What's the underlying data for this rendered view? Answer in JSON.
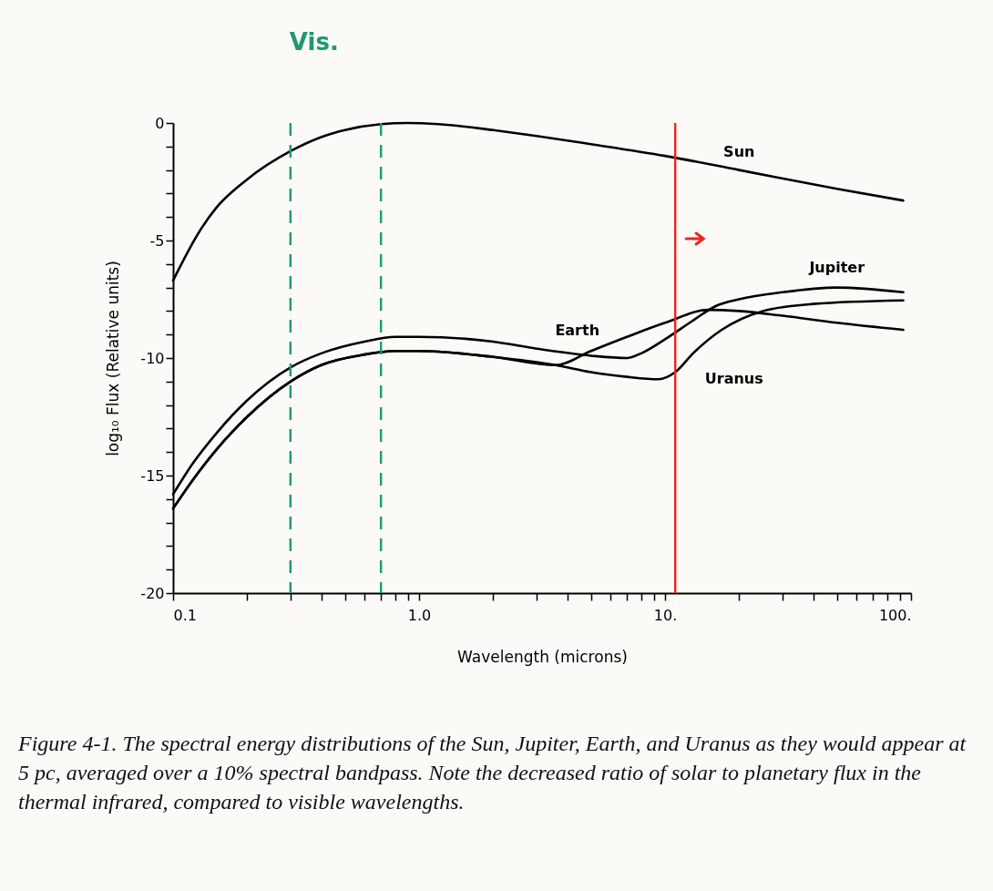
{
  "chart_data": {
    "type": "line",
    "xlabel": "Wavelength (microns)",
    "ylabel": "log₁₀ Flux (Relative units)",
    "log": "x",
    "xlim": [
      0.1,
      100
    ],
    "ylim": [
      -20,
      0
    ],
    "xticks": [
      {
        "value": 0.1,
        "label": "0.1"
      },
      {
        "value": 0.2,
        "label": null
      },
      {
        "value": 0.3,
        "label": null
      },
      {
        "value": 0.4,
        "label": null
      },
      {
        "value": 0.5,
        "label": null
      },
      {
        "value": 0.6,
        "label": null
      },
      {
        "value": 0.7,
        "label": null
      },
      {
        "value": 0.8,
        "label": null
      },
      {
        "value": 0.9,
        "label": null
      },
      {
        "value": 1,
        "label": "1.0"
      },
      {
        "value": 2,
        "label": null
      },
      {
        "value": 3,
        "label": null
      },
      {
        "value": 4,
        "label": null
      },
      {
        "value": 5,
        "label": null
      },
      {
        "value": 6,
        "label": null
      },
      {
        "value": 7,
        "label": null
      },
      {
        "value": 8,
        "label": null
      },
      {
        "value": 9,
        "label": null
      },
      {
        "value": 10,
        "label": "10."
      },
      {
        "value": 20,
        "label": null
      },
      {
        "value": 30,
        "label": null
      },
      {
        "value": 40,
        "label": null
      },
      {
        "value": 50,
        "label": null
      },
      {
        "value": 60,
        "label": null
      },
      {
        "value": 70,
        "label": null
      },
      {
        "value": 80,
        "label": null
      },
      {
        "value": 90,
        "label": null
      },
      {
        "value": 100,
        "label": "100."
      }
    ],
    "yticks": [
      0,
      {
        "value": -1,
        "label": null
      },
      {
        "value": -2,
        "label": null
      },
      {
        "value": -3,
        "label": null
      },
      {
        "value": -4,
        "label": null
      },
      -5,
      {
        "value": -6,
        "label": null
      },
      {
        "value": -7,
        "label": null
      },
      {
        "value": -8,
        "label": null
      },
      {
        "value": -9,
        "label": null
      },
      -10,
      {
        "value": -11,
        "label": null
      },
      {
        "value": -12,
        "label": null
      },
      {
        "value": -13,
        "label": null
      },
      {
        "value": -14,
        "label": null
      },
      -15,
      {
        "value": -16,
        "label": null
      },
      {
        "value": -17,
        "label": null
      },
      {
        "value": -18,
        "label": null
      },
      {
        "value": -19,
        "label": null
      },
      -20
    ],
    "series": [
      {
        "name": "Sun",
        "color": "#000000",
        "x": [
          0.1,
          0.13,
          0.15,
          0.2,
          0.3,
          0.4,
          0.5,
          0.7,
          0.9,
          1.2,
          2,
          3,
          5,
          10,
          20,
          50,
          93
        ],
        "values": [
          -6.7,
          -4.5,
          -3.6,
          -2.4,
          -1.2,
          -0.6,
          -0.3,
          -0.05,
          0,
          -0.05,
          -0.3,
          -0.55,
          -0.9,
          -1.4,
          -2.0,
          -2.8,
          -3.3
        ]
      },
      {
        "name": "Earth",
        "color": "#000000",
        "x": [
          0.1,
          0.12,
          0.15,
          0.2,
          0.3,
          0.4,
          0.6,
          0.8,
          1,
          2,
          3.6,
          5,
          7,
          10,
          15,
          20,
          30,
          50,
          93
        ],
        "values": [
          -16.4,
          -15.2,
          -13.9,
          -12.5,
          -11.0,
          -10.3,
          -9.85,
          -9.7,
          -9.7,
          -9.95,
          -10.3,
          -9.7,
          -9.1,
          -8.5,
          -7.95,
          -8.0,
          -8.2,
          -8.5,
          -8.8
        ]
      },
      {
        "name": "Jupiter",
        "color": "#000000",
        "x": [
          0.1,
          0.12,
          0.15,
          0.2,
          0.3,
          0.4,
          0.6,
          0.8,
          1,
          2,
          3,
          5,
          7,
          8,
          10,
          13,
          16,
          20,
          30,
          50,
          93
        ],
        "values": [
          -15.8,
          -14.5,
          -13.2,
          -11.8,
          -10.4,
          -9.8,
          -9.3,
          -9.1,
          -9.1,
          -9.3,
          -9.6,
          -9.9,
          -10.0,
          -9.8,
          -9.2,
          -8.4,
          -7.8,
          -7.5,
          -7.2,
          -7.0,
          -7.2
        ]
      },
      {
        "name": "Uranus",
        "color": "#000000",
        "x": [
          0.1,
          0.12,
          0.15,
          0.2,
          0.3,
          0.4,
          0.6,
          0.8,
          1,
          2,
          3.6,
          5,
          7,
          9.4,
          11,
          13,
          17,
          25,
          40,
          93
        ],
        "values": [
          -16.4,
          -15.2,
          -13.9,
          -12.5,
          -11.0,
          -10.3,
          -9.85,
          -9.7,
          -9.7,
          -9.95,
          -10.3,
          -10.6,
          -10.8,
          -10.9,
          -10.6,
          -9.8,
          -8.8,
          -8.0,
          -7.7,
          -7.55
        ]
      }
    ],
    "ref_lines": [
      {
        "axis": "x",
        "value": 0.3,
        "label": "Vis.",
        "color": "#1f9a6e",
        "line_style": "dashed"
      },
      {
        "axis": "x",
        "value": 0.7,
        "color": "#1f9a6e",
        "line_style": "dashed"
      },
      {
        "axis": "x",
        "value": 11,
        "color": "#e8291c",
        "line_style": "solid"
      }
    ],
    "annotations": [
      "Figure 4-1. The spectral energy distributions of the Sun, Jupiter, Earth, and Uranus as they would appear at 5 pc, averaged over a 10% spectral bandpass. Note the decreased ratio of solar to planetary flux in the thermal infrared, compared to visible wavelengths."
    ]
  }
}
